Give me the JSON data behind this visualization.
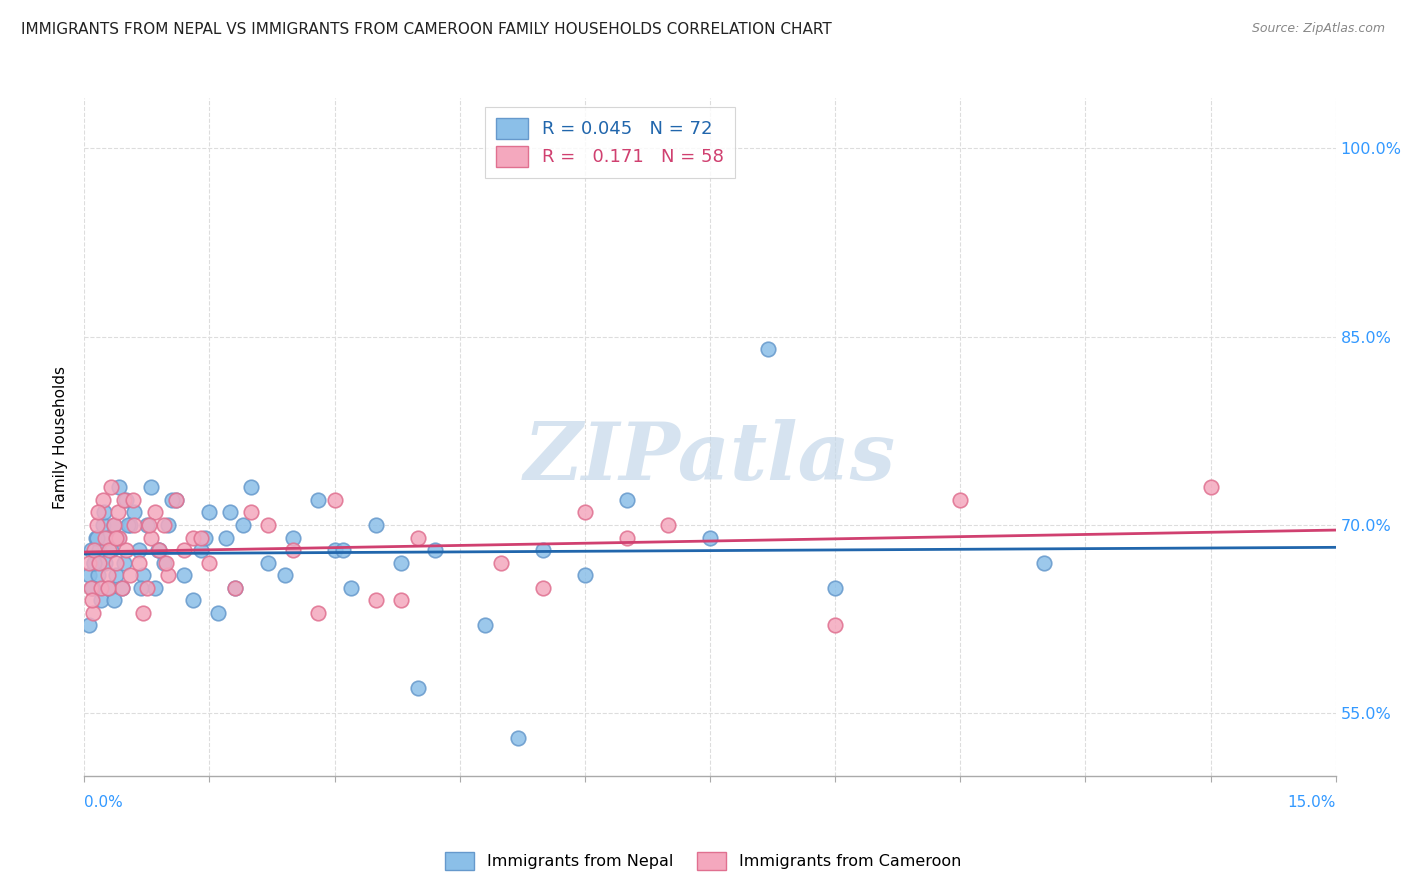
{
  "title": "IMMIGRANTS FROM NEPAL VS IMMIGRANTS FROM CAMEROON FAMILY HOUSEHOLDS CORRELATION CHART",
  "source": "Source: ZipAtlas.com",
  "ylabel_label": "Family Households",
  "xlim": [
    0.0,
    15.0
  ],
  "ylim": [
    50.0,
    104.0
  ],
  "ytick_vals": [
    55,
    70,
    85,
    100
  ],
  "ytick_labels": [
    "55.0%",
    "70.0%",
    "85.0%",
    "100.0%"
  ],
  "nepal_R": 0.045,
  "nepal_N": 72,
  "cameroon_R": 0.171,
  "cameroon_N": 58,
  "nepal_color": "#8bbfe8",
  "cameroon_color": "#f4a8be",
  "nepal_edge_color": "#6699cc",
  "cameroon_edge_color": "#e07090",
  "nepal_line_color": "#2166ac",
  "cameroon_line_color": "#d04070",
  "watermark_color": "#c5d8ea",
  "grid_color": "#dddddd",
  "axis_color": "#aaaaaa",
  "title_color": "#222222",
  "source_color": "#888888",
  "tick_label_color": "#3399ff",
  "watermark": "ZIPatlas",
  "nepal_x": [
    0.05,
    0.08,
    0.1,
    0.12,
    0.14,
    0.16,
    0.18,
    0.2,
    0.22,
    0.25,
    0.28,
    0.3,
    0.32,
    0.35,
    0.38,
    0.4,
    0.42,
    0.45,
    0.48,
    0.5,
    0.55,
    0.6,
    0.65,
    0.7,
    0.75,
    0.8,
    0.85,
    0.9,
    0.95,
    1.0,
    1.1,
    1.2,
    1.3,
    1.4,
    1.5,
    1.6,
    1.7,
    1.8,
    1.9,
    2.0,
    2.2,
    2.5,
    2.8,
    3.0,
    3.2,
    3.5,
    3.8,
    4.2,
    5.5,
    6.0,
    7.5,
    9.0,
    0.06,
    0.09,
    0.11,
    0.15,
    0.24,
    0.36,
    0.52,
    0.68,
    0.88,
    1.05,
    1.45,
    1.75,
    2.4,
    3.1,
    4.0,
    4.8,
    5.2,
    6.5,
    8.2,
    11.5
  ],
  "nepal_y": [
    66,
    68,
    65,
    67,
    69,
    66,
    68,
    64,
    70,
    67,
    69,
    65,
    68,
    70,
    66,
    69,
    73,
    65,
    67,
    72,
    70,
    71,
    68,
    66,
    70,
    73,
    65,
    68,
    67,
    70,
    72,
    66,
    64,
    68,
    71,
    63,
    69,
    65,
    70,
    73,
    67,
    69,
    72,
    68,
    65,
    70,
    67,
    68,
    68,
    66,
    69,
    65,
    62,
    65,
    67,
    69,
    71,
    64,
    70,
    65,
    68,
    72,
    69,
    71,
    66,
    68,
    57,
    62,
    53,
    72,
    84,
    67
  ],
  "cameroon_x": [
    0.05,
    0.08,
    0.1,
    0.12,
    0.15,
    0.18,
    0.2,
    0.22,
    0.25,
    0.28,
    0.3,
    0.32,
    0.35,
    0.38,
    0.4,
    0.42,
    0.45,
    0.48,
    0.5,
    0.55,
    0.6,
    0.65,
    0.7,
    0.75,
    0.8,
    0.85,
    0.9,
    0.95,
    1.0,
    1.1,
    1.2,
    1.3,
    1.5,
    1.8,
    2.0,
    2.2,
    2.5,
    3.0,
    3.5,
    4.0,
    5.0,
    5.5,
    6.0,
    7.0,
    9.0,
    10.5,
    13.5,
    0.09,
    0.16,
    0.28,
    0.38,
    0.58,
    0.78,
    0.98,
    1.4,
    2.8,
    3.8,
    6.5
  ],
  "cameroon_y": [
    67,
    65,
    63,
    68,
    70,
    67,
    65,
    72,
    69,
    66,
    68,
    73,
    70,
    67,
    71,
    69,
    65,
    72,
    68,
    66,
    70,
    67,
    63,
    65,
    69,
    71,
    68,
    70,
    66,
    72,
    68,
    69,
    67,
    65,
    71,
    70,
    68,
    72,
    64,
    69,
    67,
    65,
    71,
    70,
    62,
    72,
    73,
    64,
    71,
    65,
    69,
    72,
    70,
    67,
    69,
    63,
    64,
    69
  ]
}
